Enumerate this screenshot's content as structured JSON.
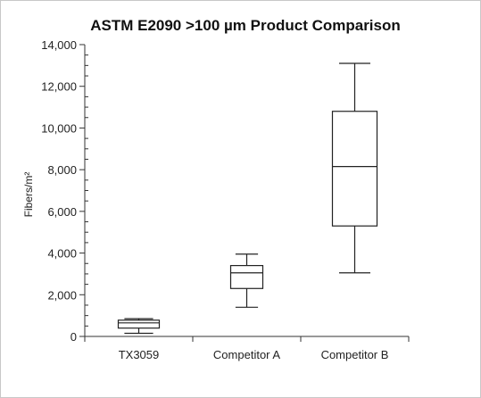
{
  "chart_data": {
    "type": "box",
    "title": "ASTM E2090 >100 µm Product Comparison",
    "ylabel": "Fibers/m²",
    "xlabel": "",
    "ylim": [
      0,
      14000
    ],
    "yticks": [
      0,
      2000,
      4000,
      6000,
      8000,
      10000,
      12000,
      14000
    ],
    "ytick_labels": [
      "0",
      "2,000",
      "4,000",
      "6,000",
      "8,000",
      "10,000",
      "12,000",
      "14,000"
    ],
    "categories": [
      "TX3059",
      "Competitor A",
      "Competitor B"
    ],
    "boxes": [
      {
        "category": "TX3059",
        "min": 150,
        "q1": 400,
        "median": 650,
        "q3": 780,
        "max": 850
      },
      {
        "category": "Competitor A",
        "min": 1400,
        "q1": 2300,
        "median": 3050,
        "q3": 3400,
        "max": 3950
      },
      {
        "category": "Competitor B",
        "min": 3050,
        "q1": 5300,
        "median": 8150,
        "q3": 10800,
        "max": 13100
      }
    ],
    "grid": false,
    "legend": "none"
  }
}
